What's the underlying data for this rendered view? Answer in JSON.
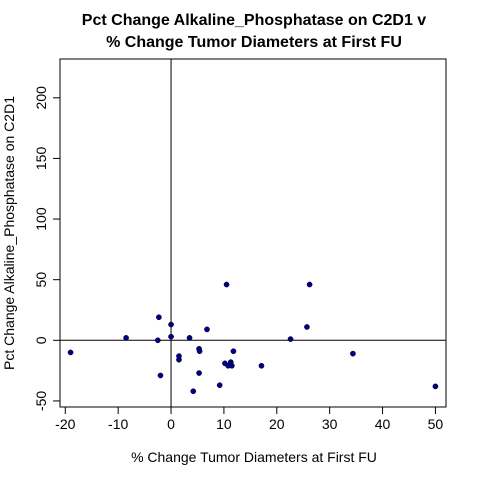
{
  "chart_data": {
    "type": "scatter",
    "title_lines": [
      "Pct Change Alkaline_Phosphatase on C2D1 v",
      "% Change Tumor Diameters at First FU"
    ],
    "xlabel": "% Change Tumor Diameters at First FU",
    "ylabel": "Pct Change Alkaline_Phosphatase on C2D1",
    "xlim": [
      -21,
      52
    ],
    "ylim": [
      -55,
      232
    ],
    "xticks": [
      -20,
      -10,
      0,
      10,
      20,
      30,
      40,
      50
    ],
    "yticks": [
      -50,
      0,
      50,
      100,
      150,
      200
    ],
    "reference_lines": {
      "x": 0,
      "y": 0
    },
    "grid": false,
    "point_color": "#000080",
    "points": [
      {
        "x": -19,
        "y": -10
      },
      {
        "x": -8.5,
        "y": 2
      },
      {
        "x": -2.5,
        "y": 0
      },
      {
        "x": -2.3,
        "y": 19
      },
      {
        "x": -2,
        "y": -29
      },
      {
        "x": 0,
        "y": 3
      },
      {
        "x": 0,
        "y": 13
      },
      {
        "x": 1.5,
        "y": -13
      },
      {
        "x": 1.5,
        "y": -16
      },
      {
        "x": 3.5,
        "y": 2
      },
      {
        "x": 4.2,
        "y": -42
      },
      {
        "x": 5.3,
        "y": -7
      },
      {
        "x": 5.4,
        "y": -9
      },
      {
        "x": 5.3,
        "y": -27
      },
      {
        "x": 6.8,
        "y": 9
      },
      {
        "x": 9.2,
        "y": -37
      },
      {
        "x": 10.2,
        "y": -19
      },
      {
        "x": 10.5,
        "y": 46
      },
      {
        "x": 10.8,
        "y": -21
      },
      {
        "x": 11.3,
        "y": -18
      },
      {
        "x": 11.5,
        "y": -21
      },
      {
        "x": 11.8,
        "y": -9
      },
      {
        "x": 17.1,
        "y": -21
      },
      {
        "x": 22.6,
        "y": 1
      },
      {
        "x": 25.7,
        "y": 11
      },
      {
        "x": 26.2,
        "y": 46
      },
      {
        "x": 34.4,
        "y": -11
      },
      {
        "x": 50,
        "y": -38
      }
    ]
  }
}
